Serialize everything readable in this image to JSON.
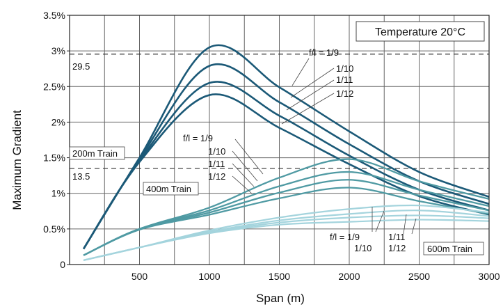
{
  "chart_data": {
    "type": "line",
    "xlabel": "Span (m)",
    "ylabel": "Maximum Gradient",
    "xlim": [
      0,
      3000
    ],
    "ylim": [
      0,
      3.5
    ],
    "xticks": [
      500,
      1000,
      1500,
      2000,
      2500,
      3000
    ],
    "yticks": [
      0,
      0.5,
      1,
      1.5,
      2,
      2.5,
      3,
      3.5
    ],
    "ytick_labels": [
      "0",
      "0.5%",
      "1%",
      "1.5%",
      "2%",
      "2.5%",
      "3%",
      "3.5%"
    ],
    "grid": true,
    "annotations": {
      "temperature": "Temperature 20°C",
      "ref_lines": [
        {
          "value": 2.955,
          "label": "29.5"
        },
        {
          "value": 1.35,
          "label": "13.5"
        }
      ],
      "groups": [
        {
          "name": "200m Train",
          "ratios": [
            "f/l = 1/9",
            "1/10",
            "1/11",
            "1/12"
          ]
        },
        {
          "name": "400m Train",
          "ratios": [
            "f/l = 1/9",
            "1/10",
            "1/11",
            "1/12"
          ]
        },
        {
          "name": "600m Train",
          "ratios_a": [
            "f/l = 1/9",
            "1/10"
          ],
          "ratios_b": [
            "1/11",
            "1/12"
          ]
        }
      ]
    },
    "series": [
      {
        "group": "200m Train",
        "ratio": "1/9",
        "color": "#1b5977",
        "x": [
          100,
          500,
          1000,
          1500,
          2000,
          2500,
          3000
        ],
        "y": [
          0.22,
          1.5,
          3.05,
          2.49,
          1.87,
          1.3,
          0.95
        ]
      },
      {
        "group": "200m Train",
        "ratio": "1/10",
        "color": "#1b5977",
        "x": [
          100,
          500,
          1000,
          1500,
          2000,
          2500,
          3000
        ],
        "y": [
          0.22,
          1.48,
          2.79,
          2.28,
          1.69,
          1.17,
          0.85
        ]
      },
      {
        "group": "200m Train",
        "ratio": "1/11",
        "color": "#1b5977",
        "x": [
          100,
          500,
          1000,
          1500,
          2000,
          2500,
          3000
        ],
        "y": [
          0.22,
          1.46,
          2.55,
          2.09,
          1.53,
          1.05,
          0.76
        ]
      },
      {
        "group": "200m Train",
        "ratio": "1/12",
        "color": "#1b5977",
        "x": [
          100,
          500,
          1000,
          1500,
          2000,
          2500,
          3000
        ],
        "y": [
          0.22,
          1.44,
          2.38,
          1.92,
          1.41,
          0.96,
          0.7
        ]
      },
      {
        "group": "400m Train",
        "ratio": "1/9",
        "color": "#4f9aa3",
        "x": [
          100,
          500,
          1000,
          1500,
          2000,
          2500,
          3000
        ],
        "y": [
          0.13,
          0.5,
          0.8,
          1.22,
          1.48,
          1.17,
          0.92
        ]
      },
      {
        "group": "400m Train",
        "ratio": "1/10",
        "color": "#4f9aa3",
        "x": [
          100,
          500,
          1000,
          1500,
          2000,
          2500,
          3000
        ],
        "y": [
          0.13,
          0.5,
          0.76,
          1.1,
          1.3,
          1.05,
          0.82
        ]
      },
      {
        "group": "400m Train",
        "ratio": "1/11",
        "color": "#4f9aa3",
        "x": [
          100,
          500,
          1000,
          1500,
          2000,
          2500,
          3000
        ],
        "y": [
          0.13,
          0.5,
          0.73,
          1.01,
          1.19,
          0.97,
          0.76
        ]
      },
      {
        "group": "400m Train",
        "ratio": "1/12",
        "color": "#4f9aa3",
        "x": [
          100,
          500,
          1000,
          1500,
          2000,
          2500,
          3000
        ],
        "y": [
          0.13,
          0.49,
          0.7,
          0.93,
          1.08,
          0.89,
          0.71
        ]
      },
      {
        "group": "600m Train",
        "ratio": "1/9",
        "color": "#a4d4dd",
        "x": [
          100,
          500,
          1000,
          1500,
          2000,
          2500,
          3000
        ],
        "y": [
          0.06,
          0.24,
          0.48,
          0.66,
          0.78,
          0.83,
          0.73
        ]
      },
      {
        "group": "600m Train",
        "ratio": "1/10",
        "color": "#a4d4dd",
        "x": [
          100,
          500,
          1000,
          1500,
          2000,
          2500,
          3000
        ],
        "y": [
          0.06,
          0.24,
          0.46,
          0.62,
          0.71,
          0.76,
          0.68
        ]
      },
      {
        "group": "600m Train",
        "ratio": "1/11",
        "color": "#a4d4dd",
        "x": [
          100,
          500,
          1000,
          1500,
          2000,
          2500,
          3000
        ],
        "y": [
          0.06,
          0.24,
          0.45,
          0.59,
          0.66,
          0.69,
          0.65
        ]
      },
      {
        "group": "600m Train",
        "ratio": "1/12",
        "color": "#a4d4dd",
        "x": [
          100,
          500,
          1000,
          1500,
          2000,
          2500,
          3000
        ],
        "y": [
          0.06,
          0.24,
          0.44,
          0.56,
          0.6,
          0.63,
          0.61
        ]
      }
    ]
  }
}
